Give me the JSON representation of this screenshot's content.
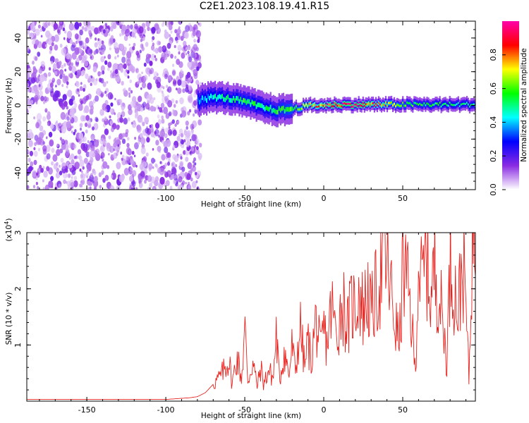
{
  "title": "C2E1.2023.108.19.41.R15",
  "chart_data": [
    {
      "type": "heatmap",
      "xlabel": "Height of straight line (km)",
      "ylabel": "Frequency (Hz)",
      "xlim": [
        -188,
        96
      ],
      "ylim": [
        -50,
        50
      ],
      "xticks": [
        -150,
        -100,
        -50,
        0,
        50
      ],
      "xtick_labels": [
        "-150",
        "-100",
        "-50",
        "0",
        "50"
      ],
      "yticks": [
        -40,
        -20,
        0,
        20,
        40
      ],
      "ytick_labels": [
        "-40",
        "-20",
        "0",
        "20",
        "40"
      ],
      "noise_region_x": [
        -188,
        -80
      ],
      "signal_ridge": {
        "x": [
          -80,
          -70,
          -60,
          -50,
          -40,
          -30,
          -20,
          -10,
          0,
          10,
          20,
          30,
          40,
          50,
          60,
          70,
          80,
          96
        ],
        "freq": [
          3,
          5,
          4,
          2,
          -1,
          -3,
          -2,
          0,
          0,
          0.5,
          0.5,
          0.5,
          0.5,
          0.5,
          0.5,
          0.5,
          0.5,
          0.5
        ],
        "amplitude": [
          0.35,
          0.45,
          0.5,
          0.55,
          0.5,
          0.55,
          0.6,
          0.75,
          0.85,
          0.9,
          0.9,
          0.85,
          0.7,
          0.6,
          0.55,
          0.55,
          0.5,
          0.5
        ]
      },
      "colorbar": {
        "label": "Normalized spectral amplitude",
        "range": [
          0,
          1
        ],
        "ticks": [
          0.0,
          0.2,
          0.4,
          0.6,
          0.8
        ],
        "tick_labels": [
          "0.0",
          "0.2",
          "0.4",
          "0.6",
          "0.8"
        ],
        "stops": [
          "#ffffff",
          "#8a2be2",
          "#0000ff",
          "#00ffff",
          "#00ff00",
          "#ffff00",
          "#ff0000",
          "#ff00aa"
        ]
      }
    },
    {
      "type": "line",
      "xlabel": "Height of straight line (km)",
      "ylabel": "SNR (10 * v/v)",
      "yscale_label": "(x10",
      "yscale_exp": "4",
      "yscale_close": ")",
      "xlim": [
        -188,
        96
      ],
      "ylim": [
        0,
        3
      ],
      "xticks": [
        -150,
        -100,
        -50,
        0,
        50
      ],
      "xtick_labels": [
        "-150",
        "-100",
        "-50",
        "0",
        "50"
      ],
      "yticks": [
        1,
        2,
        3
      ],
      "ytick_labels": [
        "1",
        "2",
        "3"
      ],
      "line_color": "#e8231e",
      "series": [
        {
          "name": "SNR",
          "x": [
            -188,
            -100,
            -90,
            -85,
            -80,
            -75,
            -70,
            -65,
            -60,
            -58,
            -55,
            -52,
            -50,
            -48,
            -45,
            -42,
            -40,
            -38,
            -35,
            -32,
            -30,
            -28,
            -25,
            -22,
            -20,
            -18,
            -15,
            -12,
            -10,
            -8,
            -5,
            -2,
            0,
            2,
            5,
            8,
            10,
            12,
            15,
            18,
            20,
            22,
            25,
            28,
            30,
            32,
            35,
            38,
            40,
            42,
            45,
            48,
            50,
            52,
            55,
            58,
            60,
            62,
            65,
            68,
            70,
            72,
            75,
            78,
            80,
            82,
            85,
            88,
            90,
            92,
            94,
            96
          ],
          "y": [
            0.03,
            0.03,
            0.05,
            0.06,
            0.08,
            0.15,
            0.3,
            0.45,
            0.75,
            0.3,
            0.8,
            0.4,
            1.3,
            0.35,
            0.7,
            0.25,
            0.6,
            0.3,
            0.55,
            0.4,
            1.2,
            0.35,
            0.9,
            0.45,
            1.0,
            0.5,
            1.35,
            0.6,
            1.1,
            0.7,
            1.45,
            0.85,
            1.3,
            1.0,
            1.7,
            1.15,
            1.5,
            1.8,
            1.3,
            1.75,
            1.65,
            2.0,
            1.6,
            1.95,
            1.5,
            1.8,
            2.1,
            2.55,
            2.4,
            2.05,
            1.4,
            1.05,
            2.35,
            2.2,
            1.6,
            0.5,
            2.55,
            2.0,
            2.6,
            1.8,
            2.4,
            2.15,
            1.5,
            0.7,
            2.55,
            2.2,
            1.55,
            2.6,
            1.7,
            0.35,
            2.9,
            3.0
          ]
        }
      ]
    }
  ]
}
